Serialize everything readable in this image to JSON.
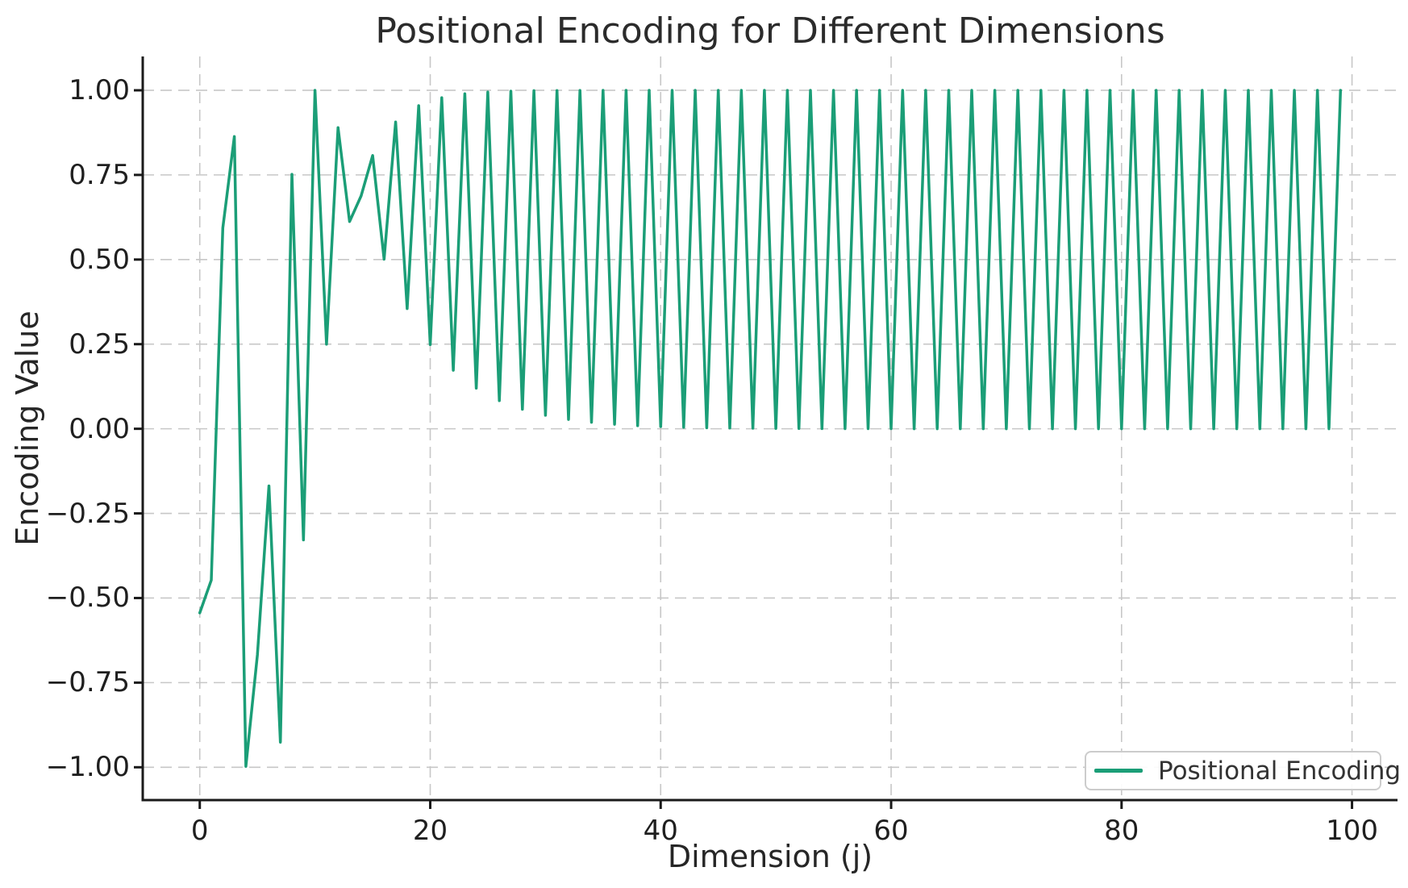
{
  "chart_data": {
    "type": "line",
    "title": "Positional Encoding for Different Dimensions",
    "xlabel": "Dimension (j)",
    "ylabel": "Encoding Value",
    "grid": "dashed",
    "grid_color": "#c7c7c7",
    "background": "#ffffff",
    "spine_color": "#1a1a1a",
    "legend_position": "lower right",
    "xlim": [
      -4.95,
      103.95
    ],
    "ylim": [
      -1.097,
      1.1
    ],
    "x_ticks": [
      {
        "v": 0,
        "label": "0"
      },
      {
        "v": 20,
        "label": "20"
      },
      {
        "v": 40,
        "label": "40"
      },
      {
        "v": 60,
        "label": "60"
      },
      {
        "v": 80,
        "label": "80"
      },
      {
        "v": 100,
        "label": "100"
      }
    ],
    "y_ticks": [
      {
        "v": 1.0,
        "label": "1.00"
      },
      {
        "v": 0.75,
        "label": "0.75"
      },
      {
        "v": 0.5,
        "label": "0.50"
      },
      {
        "v": 0.25,
        "label": "0.25"
      },
      {
        "v": 0.0,
        "label": "0.00"
      },
      {
        "v": -0.25,
        "label": "−0.25"
      },
      {
        "v": -0.5,
        "label": "−0.50"
      },
      {
        "v": -0.75,
        "label": "−0.75"
      },
      {
        "v": -1.0,
        "label": "−1.00"
      }
    ],
    "series": [
      {
        "name": "Positional Encoding",
        "color": "#1b9e77",
        "line_width": 3.5,
        "x": [
          0,
          1,
          2,
          3,
          4,
          5,
          6,
          7,
          8,
          9,
          10,
          11,
          12,
          13,
          14,
          15,
          16,
          17,
          18,
          19,
          20,
          21,
          22,
          23,
          24,
          25,
          26,
          27,
          28,
          29,
          30,
          31,
          32,
          33,
          34,
          35,
          36,
          37,
          38,
          39,
          40,
          41,
          42,
          43,
          44,
          45,
          46,
          47,
          48,
          49,
          50,
          51,
          52,
          53,
          54,
          55,
          56,
          57,
          58,
          59,
          60,
          61,
          62,
          63,
          64,
          65,
          66,
          67,
          68,
          69,
          70,
          71,
          72,
          73,
          74,
          75,
          76,
          77,
          78,
          79,
          80,
          81,
          82,
          83,
          84,
          85,
          86,
          87,
          88,
          89,
          90,
          91,
          92,
          93,
          94,
          95,
          96,
          97,
          98,
          99
        ],
        "y": [
          -0.544,
          -0.4472,
          0.5933,
          0.8634,
          -0.9973,
          -0.6678,
          -0.1689,
          -0.9259,
          0.7518,
          -0.3284,
          0.9999,
          0.2499,
          0.8896,
          0.6122,
          0.6879,
          0.8075,
          0.501,
          0.9062,
          0.3552,
          0.9547,
          0.2486,
          0.9783,
          0.1729,
          0.9896,
          0.1199,
          0.995,
          0.0831,
          0.9976,
          0.0575,
          0.9989,
          0.0398,
          0.9995,
          0.0275,
          0.9997,
          0.0191,
          0.9999,
          0.0132,
          0.9999,
          0.0091,
          1.0,
          0.0063,
          1.0,
          0.0044,
          1.0,
          0.003,
          1.0,
          0.0021,
          1.0,
          0.0014,
          1.0,
          0.001,
          1.0,
          0.0008,
          1.0,
          0.0006,
          1.0,
          0.0004,
          1.0,
          0.0003,
          1.0,
          0.0002,
          1.0,
          0.0001,
          1.0,
          0.0001,
          1.0,
          0.0001,
          1.0,
          0.0,
          1.0,
          0.0,
          1.0,
          0.0,
          1.0,
          0.0,
          1.0,
          0.0,
          1.0,
          0.0,
          1.0,
          0.0,
          1.0,
          0.0,
          1.0,
          0.0,
          1.0,
          0.0,
          1.0,
          0.0,
          1.0,
          0.0,
          1.0,
          0.0,
          1.0,
          0.0,
          1.0,
          0.0,
          1.0,
          0.0,
          1.0
        ]
      }
    ]
  }
}
